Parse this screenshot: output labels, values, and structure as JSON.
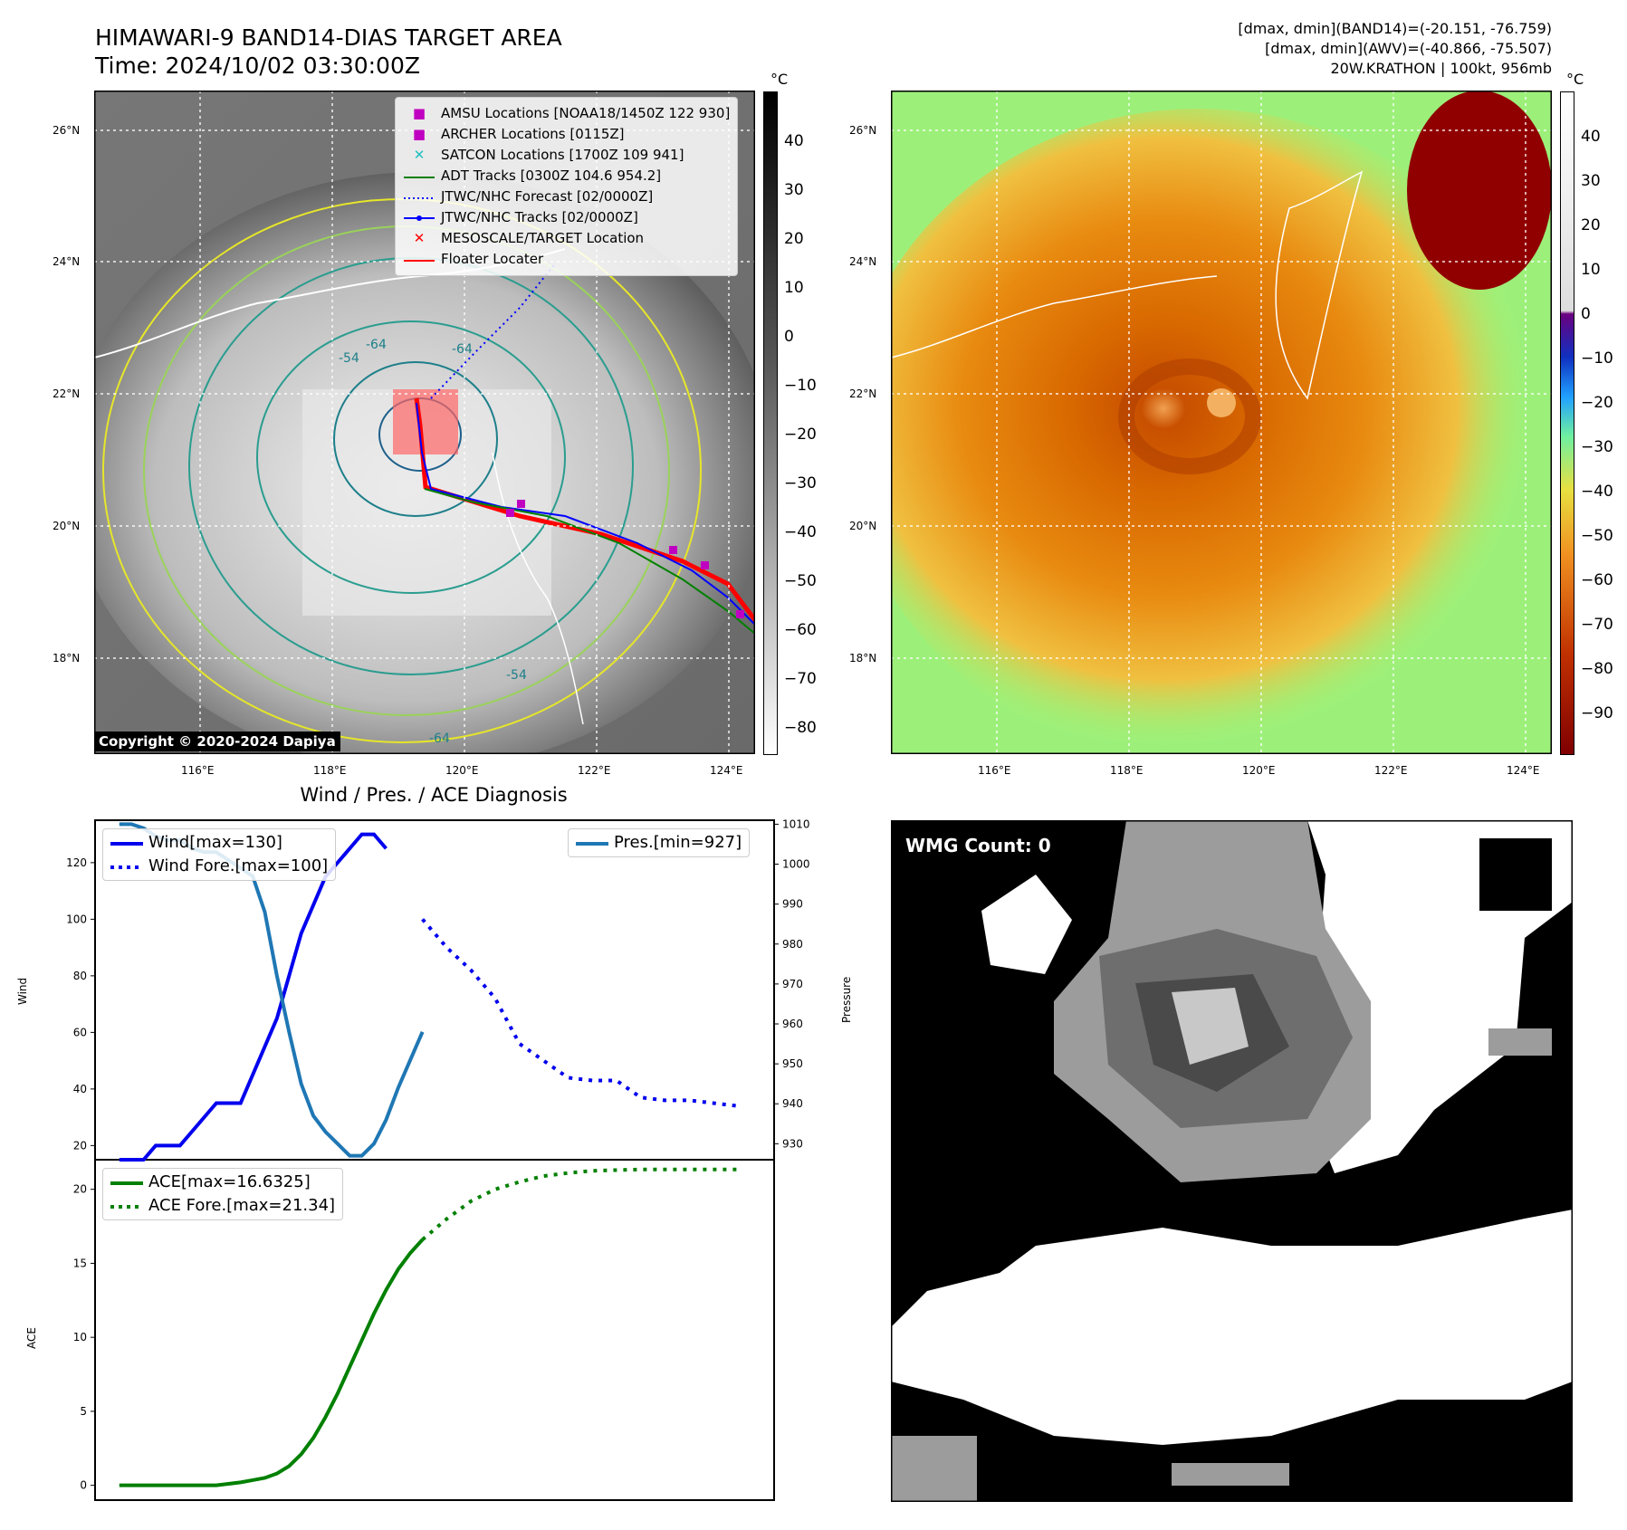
{
  "panel_ir": {
    "title_line1": "HIMAWARI-9 BAND14-DIAS TARGET AREA",
    "title_line2": "Time: 2024/10/02 03:30:00Z",
    "colorbar_unit": "°C",
    "colorbar_ticks": [
      "40",
      "30",
      "20",
      "10",
      "0",
      "−10",
      "−20",
      "−30",
      "−40",
      "−50",
      "−60",
      "−70",
      "−80"
    ],
    "lat_labels": [
      "26°N",
      "24°N",
      "22°N",
      "20°N",
      "18°N"
    ],
    "lon_labels": [
      "116°E",
      "118°E",
      "120°E",
      "122°E",
      "124°E"
    ],
    "copyright": "Copyright © 2020-2024 Dapiya",
    "contour_labels": [
      "-64",
      "-64",
      "-54",
      "-54",
      "-64"
    ],
    "legend": [
      {
        "label": "AMSU Locations [NOAA18/1450Z 122 930]",
        "symbol": "square",
        "color": "#c000c0"
      },
      {
        "label": "ARCHER Locations [0115Z]",
        "symbol": "square",
        "color": "#c000c0"
      },
      {
        "label": "SATCON Locations [1700Z 109 941]",
        "symbol": "x",
        "color": "#20c0c0"
      },
      {
        "label": "ADT Tracks [0300Z 104.6 954.2]",
        "symbol": "line",
        "color": "#008000"
      },
      {
        "label": "JTWC/NHC Forecast [02/0000Z]",
        "symbol": "dotted",
        "color": "#0000ff"
      },
      {
        "label": "JTWC/NHC Tracks [02/0000Z]",
        "symbol": "dotline",
        "color": "#0000ff"
      },
      {
        "label": "MESOSCALE/TARGET Location",
        "symbol": "x",
        "color": "#ff0000"
      },
      {
        "label": "Floater Locater",
        "symbol": "line",
        "color": "#ff0000"
      }
    ]
  },
  "panel_awv": {
    "header_line1": "[dmax, dmin](BAND14)=(-20.151, -76.759)",
    "header_line2": "[dmax, dmin](AWV)=(-40.866, -75.507)",
    "header_line3": "20W.KRATHON | 100kt, 956mb",
    "colorbar_unit": "°C",
    "colorbar_ticks": [
      "40",
      "30",
      "20",
      "10",
      "0",
      "−10",
      "−20",
      "−30",
      "−40",
      "−50",
      "−60",
      "−70",
      "−80",
      "−90"
    ],
    "lat_labels": [
      "26°N",
      "24°N",
      "22°N",
      "20°N",
      "18°N"
    ],
    "lon_labels": [
      "116°E",
      "118°E",
      "120°E",
      "122°E",
      "124°E"
    ]
  },
  "panel_wmg": {
    "label": "WMG Count: 0"
  },
  "chart_data": [
    {
      "type": "line",
      "title": "Wind / Pres. / ACE Diagnosis",
      "ylabel": "Wind",
      "y2label": "Pressure",
      "ylim": [
        15,
        135
      ],
      "y2lim": [
        926,
        1011
      ],
      "yticks": [
        "120",
        "100",
        "80",
        "60",
        "40",
        "20"
      ],
      "y2ticks": [
        "1010",
        "1000",
        "990",
        "980",
        "970",
        "960",
        "950",
        "940",
        "930"
      ],
      "series": [
        {
          "name": "Wind[max=130]",
          "style": "solid",
          "color": "#0000ee",
          "x": [
            0,
            1,
            2,
            3,
            4,
            5,
            6,
            7,
            8,
            9,
            10,
            11,
            12,
            13,
            14,
            15,
            16,
            17,
            18,
            19,
            20,
            21,
            22
          ],
          "y": [
            15,
            15,
            15,
            20,
            20,
            20,
            25,
            30,
            35,
            35,
            35,
            45,
            55,
            65,
            80,
            95,
            105,
            115,
            120,
            125,
            130,
            130,
            125
          ]
        },
        {
          "name": "Wind Fore.[max=100]",
          "style": "dotted",
          "color": "#0000ee",
          "x": [
            25,
            27,
            29,
            31,
            33,
            35,
            37,
            39,
            41,
            43,
            45,
            47,
            49,
            51
          ],
          "y": [
            100,
            90,
            82,
            72,
            56,
            50,
            44,
            43,
            43,
            37,
            36,
            36,
            35,
            34
          ]
        },
        {
          "name": "Pres.[min=927]",
          "style": "solid",
          "color": "#1f77b4",
          "axis": "y2",
          "x": [
            0,
            1,
            2,
            3,
            4,
            5,
            6,
            7,
            8,
            9,
            10,
            11,
            12,
            13,
            14,
            15,
            16,
            17,
            18,
            19,
            20,
            21,
            22,
            23,
            24,
            25
          ],
          "y": [
            1010,
            1010,
            1009,
            1007,
            1006,
            1006,
            1004,
            1003,
            1003,
            1001,
            999,
            997,
            988,
            972,
            958,
            945,
            937,
            933,
            930,
            927,
            927,
            930,
            936,
            944,
            951,
            958
          ]
        }
      ]
    },
    {
      "type": "line",
      "ylabel": "ACE",
      "ylim": [
        -1,
        22
      ],
      "yticks": [
        "20",
        "15",
        "10",
        "5",
        "0"
      ],
      "series": [
        {
          "name": "ACE[max=16.6325]",
          "style": "solid",
          "color": "#008000",
          "x": [
            0,
            2,
            4,
            6,
            8,
            9,
            10,
            11,
            12,
            13,
            14,
            15,
            16,
            17,
            18,
            19,
            20,
            21,
            22,
            23,
            24,
            25
          ],
          "y": [
            0,
            0,
            0,
            0,
            0,
            0.1,
            0.2,
            0.35,
            0.5,
            0.8,
            1.3,
            2.1,
            3.2,
            4.6,
            6.2,
            8.0,
            9.8,
            11.6,
            13.2,
            14.6,
            15.7,
            16.6
          ]
        },
        {
          "name": "ACE Fore.[max=21.34]",
          "style": "dotted",
          "color": "#008000",
          "x": [
            25,
            27,
            29,
            31,
            33,
            35,
            37,
            39,
            41,
            43,
            45,
            47,
            49,
            51
          ],
          "y": [
            16.6,
            18.0,
            19.2,
            20.0,
            20.5,
            20.9,
            21.1,
            21.25,
            21.3,
            21.34,
            21.34,
            21.34,
            21.34,
            21.34
          ]
        }
      ]
    }
  ]
}
